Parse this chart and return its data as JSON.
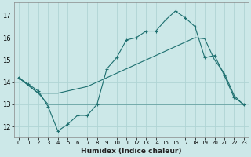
{
  "xlabel": "Humidex (Indice chaleur)",
  "xlim": [
    -0.5,
    23.5
  ],
  "ylim": [
    11.5,
    17.6
  ],
  "yticks": [
    12,
    13,
    14,
    15,
    16,
    17
  ],
  "xticks": [
    0,
    1,
    2,
    3,
    4,
    5,
    6,
    7,
    8,
    9,
    10,
    11,
    12,
    13,
    14,
    15,
    16,
    17,
    18,
    19,
    20,
    21,
    22,
    23
  ],
  "bg_color": "#cce8e8",
  "grid_color": "#b0d4d4",
  "line_color": "#1e7070",
  "line1_x": [
    0,
    1,
    2,
    3,
    4,
    5,
    6,
    7,
    8,
    9,
    10,
    11,
    12,
    13,
    14,
    15,
    16,
    17,
    18,
    19,
    20,
    21,
    22,
    23
  ],
  "line1_y": [
    14.2,
    13.9,
    13.6,
    12.9,
    11.8,
    12.1,
    12.5,
    12.5,
    13.0,
    14.6,
    15.1,
    15.9,
    16.0,
    16.3,
    16.3,
    16.8,
    17.2,
    16.9,
    16.5,
    15.1,
    15.2,
    14.3,
    13.3,
    13.0
  ],
  "line2_x": [
    0,
    1,
    2,
    3,
    4,
    5,
    6,
    7,
    8,
    9,
    10,
    11,
    12,
    13,
    14,
    15,
    16,
    17,
    18,
    19,
    20,
    21,
    22,
    23
  ],
  "line2_y": [
    14.2,
    13.85,
    13.5,
    13.5,
    13.5,
    13.6,
    13.7,
    13.8,
    14.0,
    14.2,
    14.4,
    14.6,
    14.8,
    15.0,
    15.2,
    15.4,
    15.6,
    15.8,
    16.0,
    15.95,
    15.0,
    14.4,
    13.4,
    12.95
  ],
  "line3_x": [
    0,
    1,
    2,
    3,
    4,
    5,
    6,
    7,
    8,
    9,
    10,
    11,
    12,
    13,
    14,
    15,
    16,
    17,
    18,
    19,
    20,
    21,
    22,
    23
  ],
  "line3_y": [
    14.2,
    13.85,
    13.5,
    13.0,
    13.0,
    13.0,
    13.0,
    13.0,
    13.0,
    13.0,
    13.0,
    13.0,
    13.0,
    13.0,
    13.0,
    13.0,
    13.0,
    13.0,
    13.0,
    13.0,
    13.0,
    13.0,
    13.0,
    13.0
  ]
}
